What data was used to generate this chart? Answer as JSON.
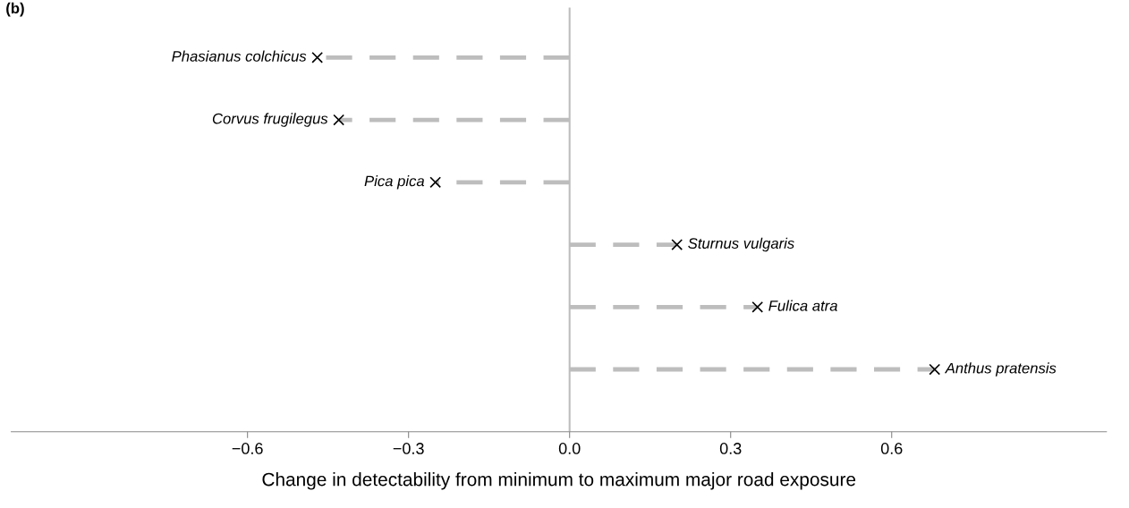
{
  "chart_data": {
    "type": "lollipop",
    "orientation": "horizontal",
    "categories": [
      "Phasianus colchicus",
      "Corvus frugilegus",
      "Pica pica",
      "Sturnus vulgaris",
      "Fulica atra",
      "Anthus pratensis"
    ],
    "series": [
      {
        "color": "#bdbdbd",
        "colors": [
          "#000000",
          "#000000",
          "#000000",
          "#000000",
          "#000000",
          "#000000"
        ],
        "values": [
          -0.47,
          -0.43,
          -0.25,
          0.2,
          0.35,
          0.68
        ]
      }
    ],
    "xlabel": "Change in detectability from minimum to maximum major road exposure",
    "xlim": [
      -1.04,
      1.0
    ],
    "xticks": [
      {
        "value": -0.6,
        "label": "−0.6"
      },
      {
        "value": -0.3,
        "label": "−0.3"
      },
      {
        "value": 0.0,
        "label": "0.0"
      },
      {
        "value": 0.3,
        "label": "0.3"
      },
      {
        "value": 0.6,
        "label": "0.6"
      }
    ],
    "ref_lines": [
      {
        "axis": "x",
        "value": 0,
        "color": "#bdbdbd",
        "line_style": "solid"
      }
    ],
    "marker": "cross",
    "line_style": "dashed",
    "grid": false,
    "tick_labels": "x",
    "annotations": [
      "(b)"
    ]
  }
}
